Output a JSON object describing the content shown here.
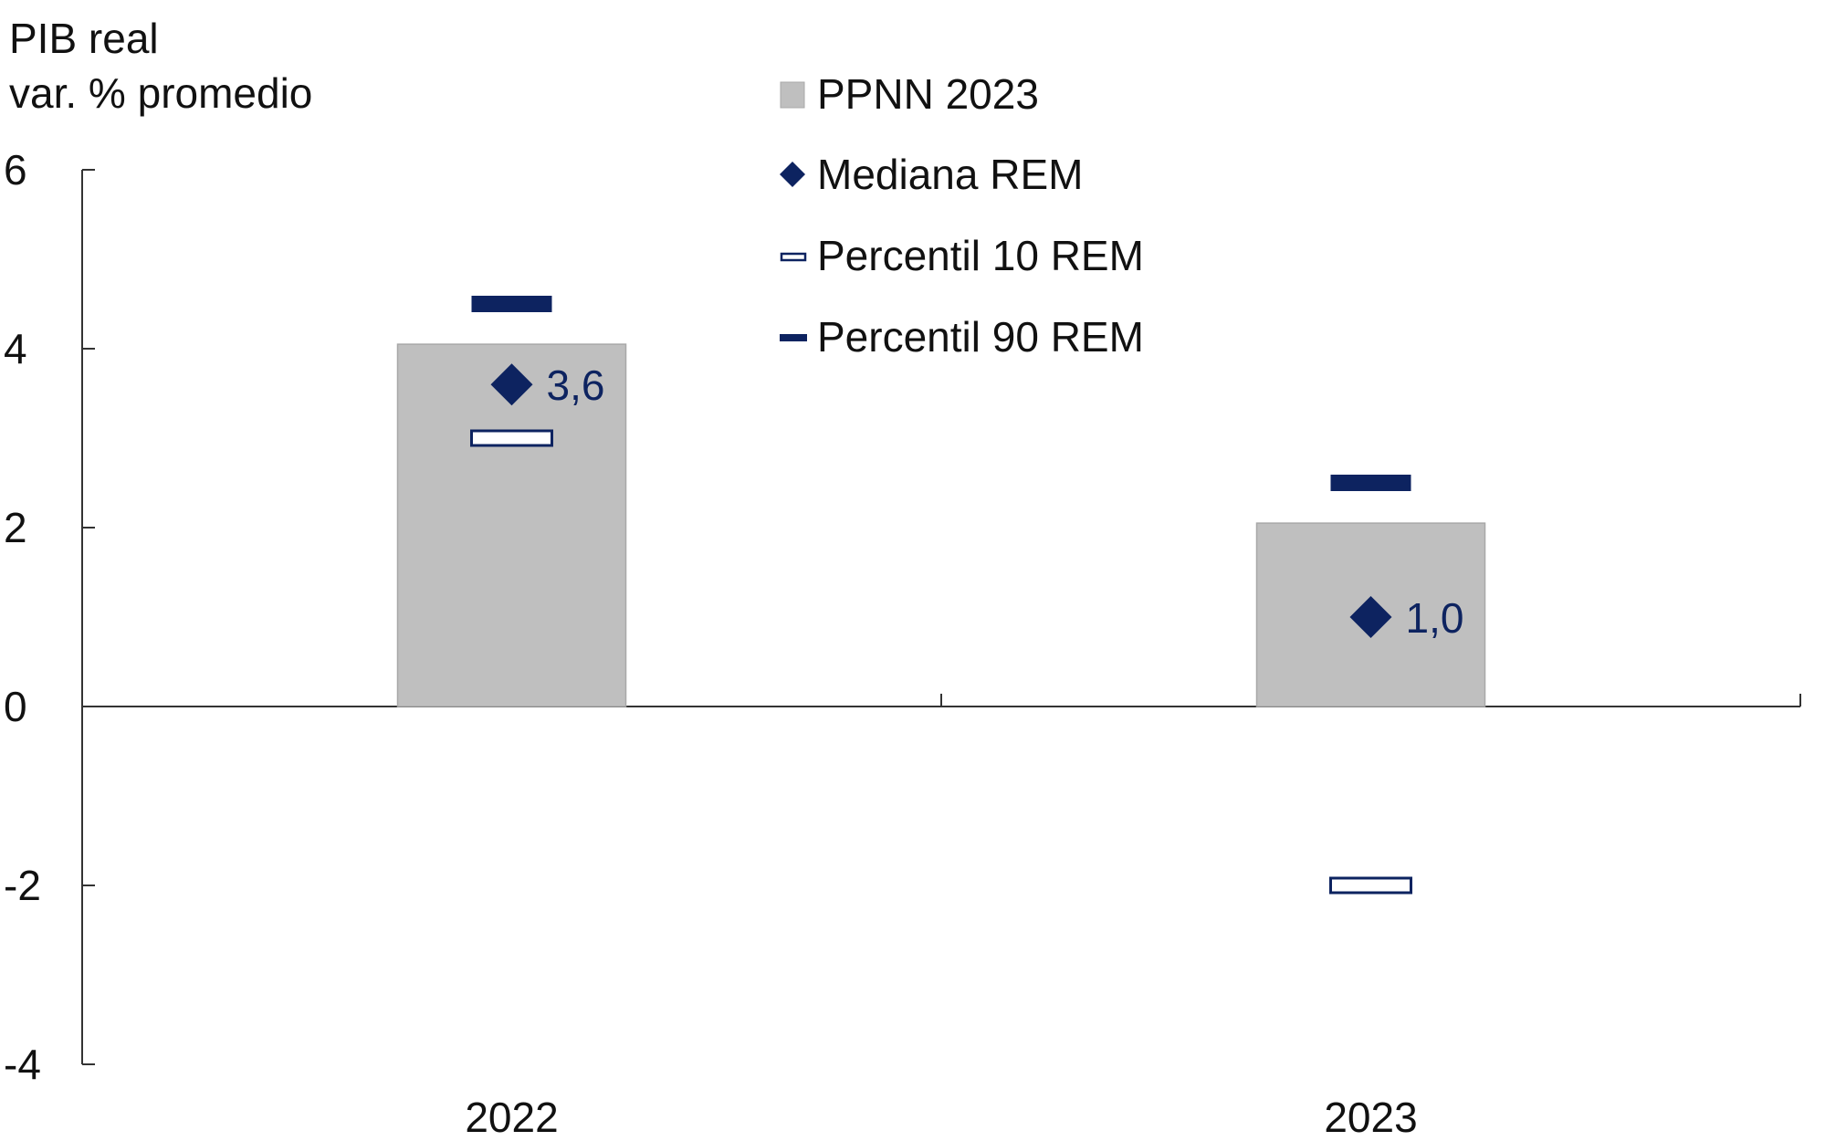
{
  "chart_data": {
    "type": "bar",
    "ylabel": [
      "PIB real",
      "var. % promedio"
    ],
    "categories": [
      "2022",
      "2023"
    ],
    "ylim": [
      -4,
      6
    ],
    "yticks": [
      6,
      4,
      2,
      0,
      -2,
      -4
    ],
    "ytick_labels": [
      "6",
      "4",
      "2",
      "0",
      "-2",
      "-4"
    ],
    "series": [
      {
        "name": "PPNN 2023",
        "kind": "bar",
        "values": [
          4.05,
          2.05
        ]
      },
      {
        "name": "Mediana REM",
        "kind": "diamond",
        "values": [
          3.6,
          1.0
        ],
        "labels": [
          "3,6",
          "1,0"
        ]
      },
      {
        "name": "Percentil 10 REM",
        "kind": "hollow-bar",
        "values": [
          3.0,
          -2.0
        ]
      },
      {
        "name": "Percentil 90 REM",
        "kind": "solid-bar",
        "values": [
          4.5,
          2.5
        ]
      }
    ],
    "legend_position": "top-center",
    "grid": false,
    "colors": {
      "bar": "#bfbfbf",
      "bar_edge": "#a8a8a8",
      "marker": "#0d2360",
      "axis": "#333333"
    }
  }
}
